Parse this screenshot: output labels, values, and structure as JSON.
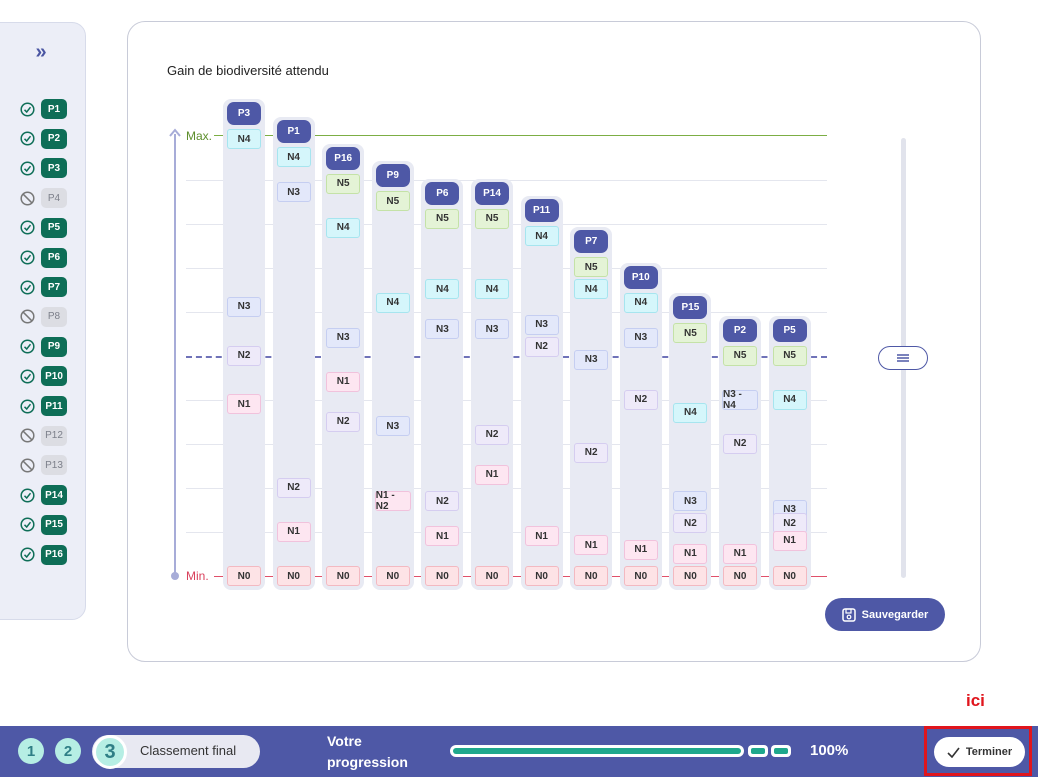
{
  "sidebar": {
    "toggle_icon": "double-chevron-right-icon",
    "items": [
      {
        "label": "P1",
        "status": "included"
      },
      {
        "label": "P2",
        "status": "included"
      },
      {
        "label": "P3",
        "status": "included"
      },
      {
        "label": "P4",
        "status": "excluded"
      },
      {
        "label": "P5",
        "status": "included"
      },
      {
        "label": "P6",
        "status": "included"
      },
      {
        "label": "P7",
        "status": "included"
      },
      {
        "label": "P8",
        "status": "excluded"
      },
      {
        "label": "P9",
        "status": "included"
      },
      {
        "label": "P10",
        "status": "included"
      },
      {
        "label": "P11",
        "status": "included"
      },
      {
        "label": "P12",
        "status": "excluded"
      },
      {
        "label": "P13",
        "status": "excluded"
      },
      {
        "label": "P14",
        "status": "included"
      },
      {
        "label": "P15",
        "status": "included"
      },
      {
        "label": "P16",
        "status": "included"
      }
    ]
  },
  "chart": {
    "title": "Gain de biodiversité attendu",
    "max_label": "Max.",
    "min_label": "Min.",
    "colors": {
      "max": "#7cae44",
      "min": "#e0506a",
      "mid": "#6f72b8",
      "header": "#4e58a6"
    }
  },
  "chart_data": {
    "type": "scatter",
    "title": "Gain de biodiversité attendu",
    "y_range": [
      "Min.",
      "Max."
    ],
    "columns": [
      {
        "label": "P3",
        "levels": [
          {
            "label": "N4",
            "y": 0.99
          },
          {
            "label": "N3",
            "y": 0.61
          },
          {
            "label": "N2",
            "y": 0.5
          },
          {
            "label": "N1",
            "y": 0.39
          },
          {
            "label": "N0",
            "y": 0.0
          }
        ]
      },
      {
        "label": "P1",
        "levels": [
          {
            "label": "N4",
            "y": 0.95
          },
          {
            "label": "N3",
            "y": 0.87
          },
          {
            "label": "N2",
            "y": 0.2
          },
          {
            "label": "N1",
            "y": 0.1
          },
          {
            "label": "N0",
            "y": 0.0
          }
        ]
      },
      {
        "label": "P16",
        "levels": [
          {
            "label": "N5",
            "y": 0.89
          },
          {
            "label": "N4",
            "y": 0.79
          },
          {
            "label": "N3",
            "y": 0.54
          },
          {
            "label": "N1",
            "y": 0.44
          },
          {
            "label": "N2",
            "y": 0.35
          },
          {
            "label": "N0",
            "y": 0.0
          }
        ]
      },
      {
        "label": "P9",
        "levels": [
          {
            "label": "N5",
            "y": 0.85
          },
          {
            "label": "N4",
            "y": 0.62
          },
          {
            "label": "N3",
            "y": 0.34
          },
          {
            "label": "N1 - N2",
            "y": 0.17
          },
          {
            "label": "N0",
            "y": 0.0
          }
        ]
      },
      {
        "label": "P6",
        "levels": [
          {
            "label": "N5",
            "y": 0.81
          },
          {
            "label": "N4",
            "y": 0.65
          },
          {
            "label": "N3",
            "y": 0.56
          },
          {
            "label": "N2",
            "y": 0.17
          },
          {
            "label": "N1",
            "y": 0.09
          },
          {
            "label": "N0",
            "y": 0.0
          }
        ]
      },
      {
        "label": "P14",
        "levels": [
          {
            "label": "N5",
            "y": 0.81
          },
          {
            "label": "N4",
            "y": 0.65
          },
          {
            "label": "N3",
            "y": 0.56
          },
          {
            "label": "N2",
            "y": 0.32
          },
          {
            "label": "N1",
            "y": 0.23
          },
          {
            "label": "N0",
            "y": 0.0
          }
        ]
      },
      {
        "label": "P11",
        "levels": [
          {
            "label": "N4",
            "y": 0.77
          },
          {
            "label": "N3",
            "y": 0.57
          },
          {
            "label": "N2",
            "y": 0.52
          },
          {
            "label": "N1",
            "y": 0.09
          },
          {
            "label": "N0",
            "y": 0.0
          }
        ]
      },
      {
        "label": "P7",
        "levels": [
          {
            "label": "N5",
            "y": 0.7
          },
          {
            "label": "N4",
            "y": 0.65
          },
          {
            "label": "N3",
            "y": 0.49
          },
          {
            "label": "N2",
            "y": 0.28
          },
          {
            "label": "N1",
            "y": 0.07
          },
          {
            "label": "N0",
            "y": 0.0
          }
        ]
      },
      {
        "label": "P10",
        "levels": [
          {
            "label": "N4",
            "y": 0.62
          },
          {
            "label": "N3",
            "y": 0.54
          },
          {
            "label": "N2",
            "y": 0.4
          },
          {
            "label": "N1",
            "y": 0.06
          },
          {
            "label": "N0",
            "y": 0.0
          }
        ]
      },
      {
        "label": "P15",
        "levels": [
          {
            "label": "N5",
            "y": 0.55
          },
          {
            "label": "N4",
            "y": 0.37
          },
          {
            "label": "N3",
            "y": 0.17
          },
          {
            "label": "N2",
            "y": 0.12
          },
          {
            "label": "N1",
            "y": 0.05
          },
          {
            "label": "N0",
            "y": 0.0
          }
        ]
      },
      {
        "label": "P2",
        "levels": [
          {
            "label": "N5",
            "y": 0.5
          },
          {
            "label": "N3 - N4",
            "y": 0.4
          },
          {
            "label": "N2",
            "y": 0.3
          },
          {
            "label": "N1",
            "y": 0.05
          },
          {
            "label": "N0",
            "y": 0.0
          }
        ]
      },
      {
        "label": "P5",
        "levels": [
          {
            "label": "N5",
            "y": 0.5
          },
          {
            "label": "N4",
            "y": 0.4
          },
          {
            "label": "N3",
            "y": 0.15
          },
          {
            "label": "N2",
            "y": 0.12
          },
          {
            "label": "N1",
            "y": 0.08
          },
          {
            "label": "N0",
            "y": 0.0
          }
        ]
      }
    ]
  },
  "save_button": {
    "label": "Sauvegarder",
    "icon": "floppy-disk-icon"
  },
  "annotation": {
    "label": "ici",
    "color": "#e0151d"
  },
  "footer": {
    "steps": [
      "1",
      "2",
      "3"
    ],
    "current_step_label": "Classement final",
    "progress_label_line1": "Votre",
    "progress_label_line2": "progression",
    "progress_value": 1.0,
    "progress_text": "100%",
    "finish_label": "Terminer",
    "finish_icon": "check-icon"
  }
}
